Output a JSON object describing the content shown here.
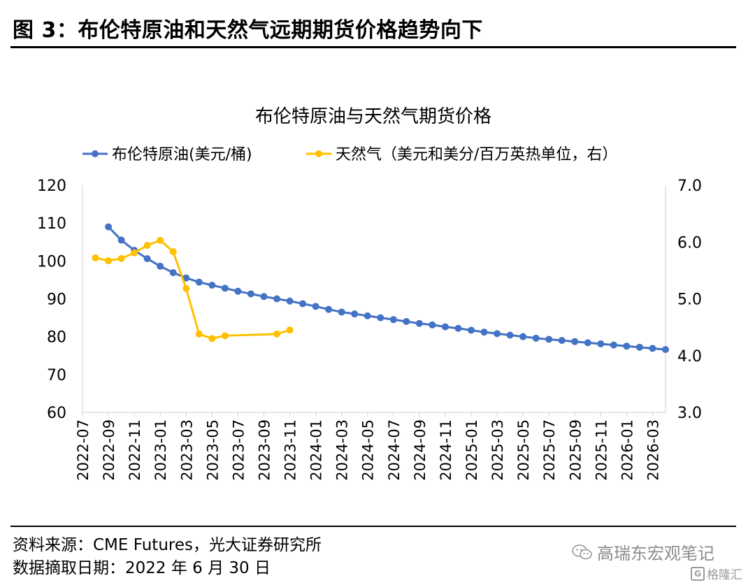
{
  "figure": {
    "title": "图 3：布伦特原油和天然气远期期货价格趋势向下",
    "source": "资料来源：CME Futures，光大证券研究所",
    "date": "数据摘取日期：2022 年 6 月 30 日",
    "watermark": "高瑞东宏观笔记",
    "logo": "格隆汇",
    "logo_icon": "g-logo-icon",
    "watermark_icon": "wechat-icon"
  },
  "chart_data": {
    "type": "line",
    "title": "布伦特原油与天然气期货价格",
    "legend_position": "top",
    "grid": false,
    "x_tick_labels": [
      "2022-07",
      "2022-09",
      "2022-11",
      "2023-01",
      "2023-03",
      "2023-05",
      "2023-07",
      "2023-09",
      "2023-11",
      "2024-01",
      "2024-03",
      "2024-05",
      "2024-07",
      "2024-09",
      "2024-11",
      "2025-01",
      "2025-03",
      "2025-05",
      "2025-07",
      "2025-09",
      "2025-11",
      "2026-01",
      "2026-03"
    ],
    "x_categories": [
      "2022-07",
      "2022-08",
      "2022-09",
      "2022-10",
      "2022-11",
      "2022-12",
      "2023-01",
      "2023-02",
      "2023-03",
      "2023-04",
      "2023-05",
      "2023-06",
      "2023-07",
      "2023-08",
      "2023-09",
      "2023-10",
      "2023-11",
      "2023-12",
      "2024-01",
      "2024-02",
      "2024-03",
      "2024-04",
      "2024-05",
      "2024-06",
      "2024-07",
      "2024-08",
      "2024-09",
      "2024-10",
      "2024-11",
      "2024-12",
      "2025-01",
      "2025-02",
      "2025-03",
      "2025-04",
      "2025-05",
      "2025-06",
      "2025-07",
      "2025-08",
      "2025-09",
      "2025-10",
      "2025-11",
      "2025-12",
      "2026-01",
      "2026-02",
      "2026-03",
      "2026-04"
    ],
    "y_left": {
      "range": [
        60,
        120
      ],
      "ticks": [
        "60",
        "70",
        "80",
        "90",
        "100",
        "110",
        "120"
      ]
    },
    "y_right": {
      "range": [
        3.0,
        7.0
      ],
      "ticks": [
        "3.0",
        "4.0",
        "5.0",
        "6.0",
        "7.0"
      ]
    },
    "series": [
      {
        "name": "布伦特原油(美元/桶)",
        "axis": "left",
        "color": "#4472C4",
        "x": [
          "2022-09",
          "2022-10",
          "2022-11",
          "2022-12",
          "2023-01",
          "2023-02",
          "2023-03",
          "2023-04",
          "2023-05",
          "2023-06",
          "2023-07",
          "2023-08",
          "2023-09",
          "2023-10",
          "2023-11",
          "2023-12",
          "2024-01",
          "2024-02",
          "2024-03",
          "2024-04",
          "2024-05",
          "2024-06",
          "2024-07",
          "2024-08",
          "2024-09",
          "2024-10",
          "2024-11",
          "2024-12",
          "2025-01",
          "2025-02",
          "2025-03",
          "2025-04",
          "2025-05",
          "2025-06",
          "2025-07",
          "2025-08",
          "2025-09",
          "2025-10",
          "2025-11",
          "2025-12",
          "2026-01",
          "2026-02",
          "2026-03",
          "2026-04"
        ],
        "values": [
          109.0,
          105.5,
          102.8,
          100.6,
          98.6,
          96.9,
          95.5,
          94.4,
          93.6,
          92.8,
          92.0,
          91.3,
          90.6,
          90.0,
          89.4,
          88.7,
          88.0,
          87.2,
          86.5,
          86.0,
          85.5,
          85.0,
          84.5,
          84.0,
          83.5,
          83.1,
          82.6,
          82.2,
          81.7,
          81.2,
          80.8,
          80.4,
          80.0,
          79.6,
          79.3,
          79.0,
          78.7,
          78.4,
          78.1,
          77.8,
          77.5,
          77.2,
          76.9,
          76.6
        ]
      },
      {
        "name": "天然气（美元和美分/百万英热单位，右）",
        "axis": "right",
        "color": "#FFC000",
        "x": [
          "2022-08",
          "2022-09",
          "2022-10",
          "2022-11",
          "2022-12",
          "2023-01",
          "2023-02",
          "2023-03",
          "2023-04",
          "2023-05",
          "2023-06",
          "2023-10",
          "2023-11"
        ],
        "values": [
          5.72,
          5.67,
          5.71,
          5.81,
          5.94,
          6.03,
          5.83,
          5.18,
          4.38,
          4.3,
          4.35,
          4.38,
          4.45
        ]
      }
    ]
  }
}
